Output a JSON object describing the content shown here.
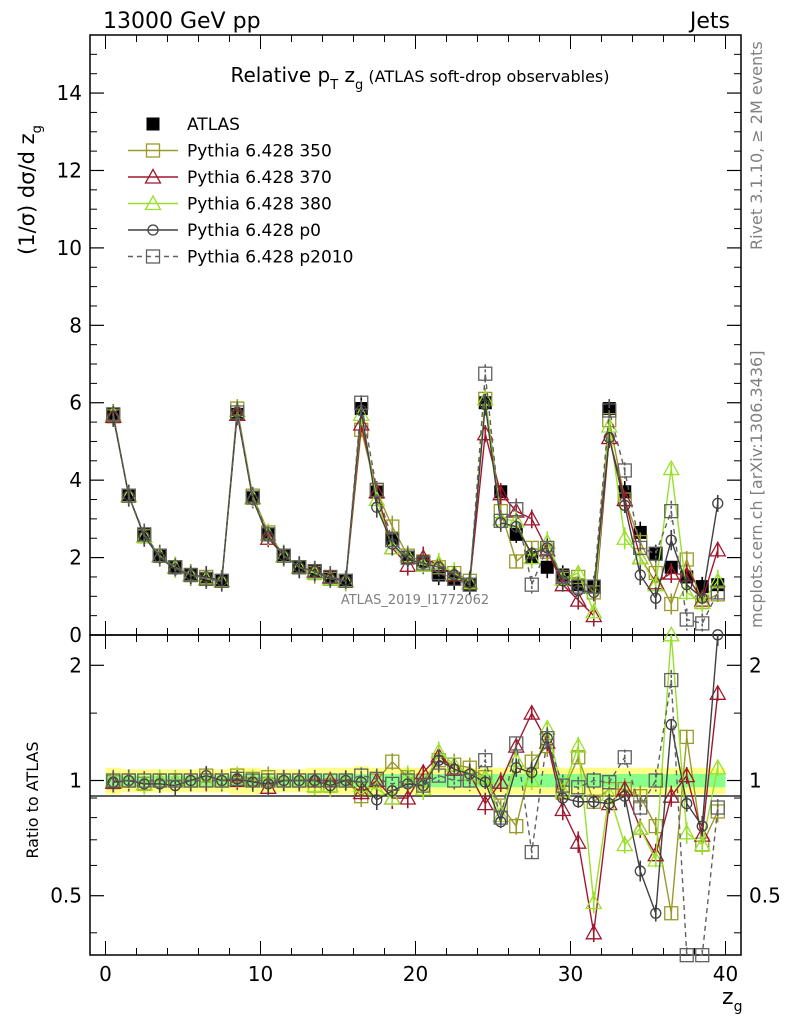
{
  "header": {
    "left": "13000 GeV pp",
    "right": "Jets"
  },
  "main_title": "Relative p",
  "main_title_sub": "T",
  "main_title_mid": " z",
  "main_title_sub2": "g",
  "main_title_tail": " (ATLAS soft-drop observables)",
  "side_text": {
    "rivet": "Rivet 3.1.10, ≥ 2M events",
    "mcplots": "mcplots.cern.ch [arXiv:1306.3436]"
  },
  "watermark": "ATLAS_2019_I1772062",
  "chart_data": [
    {
      "type": "line",
      "panel": "main",
      "ylabel": "(1/σ) dσ/d z",
      "ylabel_sub": "g",
      "xlim": [
        -1,
        41
      ],
      "ylim": [
        0,
        15.5
      ],
      "y_ticks": [
        "0",
        "2",
        "4",
        "6",
        "8",
        "10",
        "12",
        "14"
      ],
      "x": [
        0.5,
        1.5,
        2.5,
        3.5,
        4.5,
        5.5,
        6.5,
        7.5,
        8.5,
        9.5,
        10.5,
        11.5,
        12.5,
        13.5,
        14.5,
        15.5,
        16.5,
        17.5,
        18.5,
        19.5,
        20.5,
        21.5,
        22.5,
        23.5,
        24.5,
        25.5,
        26.5,
        27.5,
        28.5,
        29.5,
        30.5,
        31.5,
        32.5,
        33.5,
        34.5,
        35.5,
        36.5,
        37.5,
        38.5,
        39.5
      ],
      "series": [
        {
          "name": "ATLAS",
          "color": "#000000",
          "marker": "filled-square",
          "dash": false,
          "line": false,
          "values": [
            5.7,
            3.6,
            2.6,
            2.05,
            1.75,
            1.55,
            1.45,
            1.4,
            5.7,
            3.55,
            2.6,
            2.05,
            1.75,
            1.65,
            1.5,
            1.4,
            5.85,
            3.7,
            2.5,
            2.0,
            1.9,
            1.55,
            1.45,
            1.3,
            6.0,
            3.7,
            2.6,
            2.0,
            1.75,
            1.55,
            1.3,
            1.25,
            5.85,
            3.7,
            2.65,
            2.1,
            1.75,
            1.5,
            1.25,
            1.3
          ]
        },
        {
          "name": "Pythia 6.428 350",
          "color": "#9a9a2a",
          "marker": "open-square",
          "dash": false,
          "line": true,
          "values": [
            5.65,
            3.6,
            2.55,
            2.05,
            1.75,
            1.55,
            1.5,
            1.4,
            5.85,
            3.6,
            2.65,
            2.05,
            1.75,
            1.6,
            1.45,
            1.4,
            5.3,
            3.7,
            2.8,
            2.05,
            1.9,
            1.75,
            1.6,
            1.4,
            6.1,
            3.2,
            1.9,
            2.25,
            2.15,
            1.45,
            1.5,
            1.1,
            5.55,
            3.5,
            2.4,
            1.6,
            0.8,
            1.95,
            0.85,
            1.05
          ]
        },
        {
          "name": "Pythia 6.428 370",
          "color": "#a0182e",
          "marker": "open-triangle",
          "dash": false,
          "line": true,
          "values": [
            5.65,
            3.6,
            2.55,
            2.05,
            1.75,
            1.55,
            1.45,
            1.4,
            5.7,
            3.55,
            2.5,
            2.05,
            1.75,
            1.65,
            1.5,
            1.4,
            5.45,
            3.7,
            2.25,
            1.8,
            2.0,
            1.8,
            1.55,
            1.35,
            5.2,
            3.65,
            3.2,
            3.0,
            2.2,
            1.3,
            0.9,
            0.5,
            5.1,
            3.5,
            2.0,
            1.35,
            1.6,
            1.55,
            0.9,
            2.2
          ]
        },
        {
          "name": "Pythia 6.428 380",
          "color": "#99e02a",
          "marker": "open-triangle",
          "dash": false,
          "line": true,
          "values": [
            5.7,
            3.6,
            2.55,
            2.05,
            1.75,
            1.55,
            1.45,
            1.4,
            5.8,
            3.55,
            2.6,
            2.05,
            1.75,
            1.6,
            1.45,
            1.4,
            5.7,
            3.5,
            2.25,
            2.05,
            1.8,
            1.85,
            1.6,
            1.35,
            6.1,
            3.0,
            2.95,
            2.0,
            2.4,
            1.45,
            1.6,
            0.6,
            5.4,
            2.5,
            2.0,
            1.3,
            4.3,
            1.1,
            0.85,
            1.4
          ]
        },
        {
          "name": "Pythia 6.428 p0",
          "color": "#404040",
          "marker": "open-circle",
          "dash": false,
          "line": true,
          "values": [
            5.65,
            3.6,
            2.55,
            2.0,
            1.7,
            1.55,
            1.5,
            1.4,
            5.75,
            3.5,
            2.55,
            2.05,
            1.75,
            1.65,
            1.45,
            1.4,
            5.8,
            3.3,
            2.35,
            1.95,
            1.85,
            1.75,
            1.55,
            1.35,
            5.95,
            2.9,
            2.8,
            2.1,
            2.25,
            1.4,
            1.15,
            1.1,
            5.1,
            3.35,
            1.55,
            0.95,
            2.45,
            1.3,
            0.95,
            3.4
          ]
        },
        {
          "name": "Pythia 6.428 p2010",
          "color": "#606060",
          "marker": "open-square",
          "dash": true,
          "line": true,
          "values": [
            5.7,
            3.6,
            2.6,
            2.05,
            1.75,
            1.55,
            1.45,
            1.4,
            5.75,
            3.55,
            2.6,
            2.05,
            1.75,
            1.65,
            1.5,
            1.4,
            6.0,
            3.75,
            2.45,
            2.0,
            1.85,
            1.6,
            1.45,
            1.3,
            6.75,
            2.95,
            3.25,
            1.3,
            2.25,
            1.5,
            1.25,
            1.25,
            5.8,
            4.25,
            2.25,
            2.1,
            3.2,
            0.4,
            0.3,
            1.1
          ]
        }
      ]
    },
    {
      "type": "line",
      "panel": "ratio",
      "ylabel": "Ratio to ATLAS",
      "xlabel": "z",
      "xlabel_sub": "g",
      "xlim": [
        -1,
        41
      ],
      "ylim": [
        0.35,
        2.4
      ],
      "log_y": true,
      "y_ticks": [
        "0.5",
        "1",
        "2"
      ],
      "x_ticks": [
        "0",
        "10",
        "20",
        "30",
        "40"
      ],
      "x": [
        0.5,
        1.5,
        2.5,
        3.5,
        4.5,
        5.5,
        6.5,
        7.5,
        8.5,
        9.5,
        10.5,
        11.5,
        12.5,
        13.5,
        14.5,
        15.5,
        16.5,
        17.5,
        18.5,
        19.5,
        20.5,
        21.5,
        22.5,
        23.5,
        24.5,
        25.5,
        26.5,
        27.5,
        28.5,
        29.5,
        30.5,
        31.5,
        32.5,
        33.5,
        34.5,
        35.5,
        36.5,
        37.5,
        38.5,
        39.5
      ],
      "band_yellow": [
        0.08,
        0.07,
        0.07,
        0.07,
        0.07,
        0.07,
        0.07,
        0.07,
        0.08,
        0.08,
        0.07,
        0.07,
        0.07,
        0.08,
        0.08,
        0.08,
        0.09,
        0.08,
        0.08,
        0.08,
        0.08,
        0.08,
        0.08,
        0.08,
        0.08,
        0.08,
        0.08,
        0.08,
        0.08,
        0.08,
        0.08,
        0.08,
        0.08,
        0.08,
        0.08,
        0.08,
        0.08,
        0.08,
        0.08,
        0.08
      ],
      "band_green": [
        0.04,
        0.03,
        0.03,
        0.03,
        0.03,
        0.03,
        0.03,
        0.03,
        0.04,
        0.04,
        0.03,
        0.03,
        0.03,
        0.04,
        0.04,
        0.04,
        0.04,
        0.04,
        0.04,
        0.04,
        0.04,
        0.04,
        0.04,
        0.04,
        0.04,
        0.04,
        0.04,
        0.04,
        0.04,
        0.04,
        0.04,
        0.04,
        0.04,
        0.04,
        0.04,
        0.04,
        0.04,
        0.04,
        0.04,
        0.04
      ],
      "series": [
        {
          "name": "Pythia 6.428 350",
          "color": "#9a9a2a",
          "marker": "open-square",
          "dash": false,
          "values": [
            0.99,
            1.0,
            0.98,
            1.0,
            1.0,
            1.0,
            1.03,
            1.0,
            1.03,
            1.01,
            1.02,
            1.0,
            1.0,
            0.97,
            0.97,
            1.0,
            0.91,
            1.0,
            1.12,
            1.02,
            1.0,
            1.13,
            1.1,
            1.08,
            1.02,
            0.86,
            0.76,
            1.12,
            1.23,
            0.93,
            1.15,
            0.88,
            0.95,
            0.95,
            0.91,
            0.76,
            0.45,
            1.3,
            0.68,
            0.83
          ]
        },
        {
          "name": "Pythia 6.428 370",
          "color": "#a0182e",
          "marker": "open-triangle",
          "dash": false,
          "values": [
            0.99,
            1.0,
            0.98,
            1.0,
            1.0,
            1.0,
            1.0,
            1.0,
            1.0,
            1.0,
            0.96,
            1.0,
            1.0,
            1.0,
            1.0,
            1.0,
            0.93,
            1.0,
            0.9,
            0.9,
            1.05,
            1.16,
            1.07,
            1.04,
            0.87,
            0.99,
            1.23,
            1.5,
            1.26,
            0.84,
            0.69,
            0.4,
            0.87,
            0.95,
            0.75,
            0.64,
            0.91,
            1.03,
            0.72,
            1.69
          ]
        },
        {
          "name": "Pythia 6.428 380",
          "color": "#99e02a",
          "marker": "open-triangle",
          "dash": false,
          "values": [
            1.0,
            1.0,
            0.98,
            1.0,
            1.0,
            1.0,
            1.0,
            1.0,
            1.02,
            1.0,
            1.0,
            1.0,
            1.0,
            0.97,
            0.97,
            1.0,
            0.97,
            0.95,
            0.9,
            1.03,
            0.95,
            1.19,
            1.1,
            1.04,
            1.02,
            0.81,
            1.13,
            1.0,
            1.37,
            0.94,
            1.23,
            0.48,
            0.92,
            0.68,
            0.75,
            0.62,
            2.45,
            0.73,
            0.68,
            1.08
          ]
        },
        {
          "name": "Pythia 6.428 p0",
          "color": "#404040",
          "marker": "open-circle",
          "dash": false,
          "values": [
            0.99,
            1.0,
            0.98,
            0.98,
            0.97,
            1.0,
            1.03,
            1.0,
            1.01,
            0.99,
            0.98,
            1.0,
            1.0,
            1.0,
            0.97,
            1.0,
            0.99,
            0.89,
            0.94,
            0.98,
            0.97,
            1.13,
            1.07,
            1.04,
            0.99,
            0.78,
            1.08,
            1.05,
            1.29,
            0.9,
            0.88,
            0.88,
            0.87,
            0.91,
            0.58,
            0.45,
            1.4,
            0.87,
            0.76,
            2.6
          ]
        },
        {
          "name": "Pythia 6.428 p2010",
          "color": "#606060",
          "marker": "open-square",
          "dash": true,
          "values": [
            1.0,
            1.0,
            1.0,
            1.0,
            1.0,
            1.0,
            1.0,
            1.0,
            1.01,
            1.0,
            1.0,
            1.0,
            1.0,
            1.0,
            1.0,
            1.0,
            1.03,
            1.01,
            0.98,
            1.0,
            0.97,
            1.03,
            1.0,
            1.0,
            1.13,
            0.8,
            1.25,
            0.65,
            1.29,
            0.97,
            0.96,
            1.0,
            0.99,
            1.15,
            0.85,
            1.0,
            1.83,
            0.27,
            0.24,
            0.85
          ]
        }
      ]
    }
  ]
}
